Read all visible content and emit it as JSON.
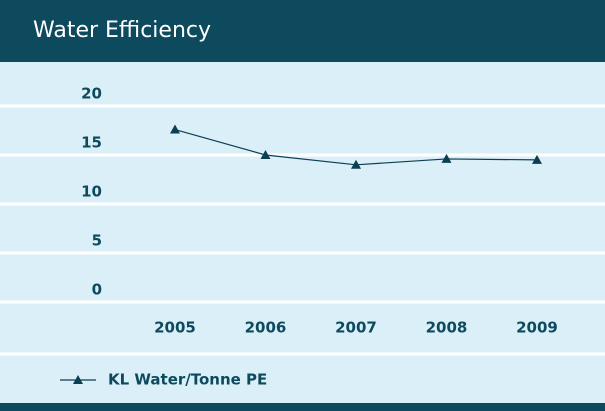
{
  "chart_data": {
    "type": "line",
    "title": "Water Efficiency",
    "categories": [
      "2005",
      "2006",
      "2007",
      "2008",
      "2009"
    ],
    "series": [
      {
        "name": "KL Water/Tonne PE",
        "color": "#0d3f52",
        "values": [
          17.6,
          15.0,
          14.0,
          14.6,
          14.5
        ]
      }
    ],
    "ylim": [
      0,
      20
    ],
    "yticks": [
      0,
      5,
      10,
      15,
      20
    ],
    "grid": true
  }
}
